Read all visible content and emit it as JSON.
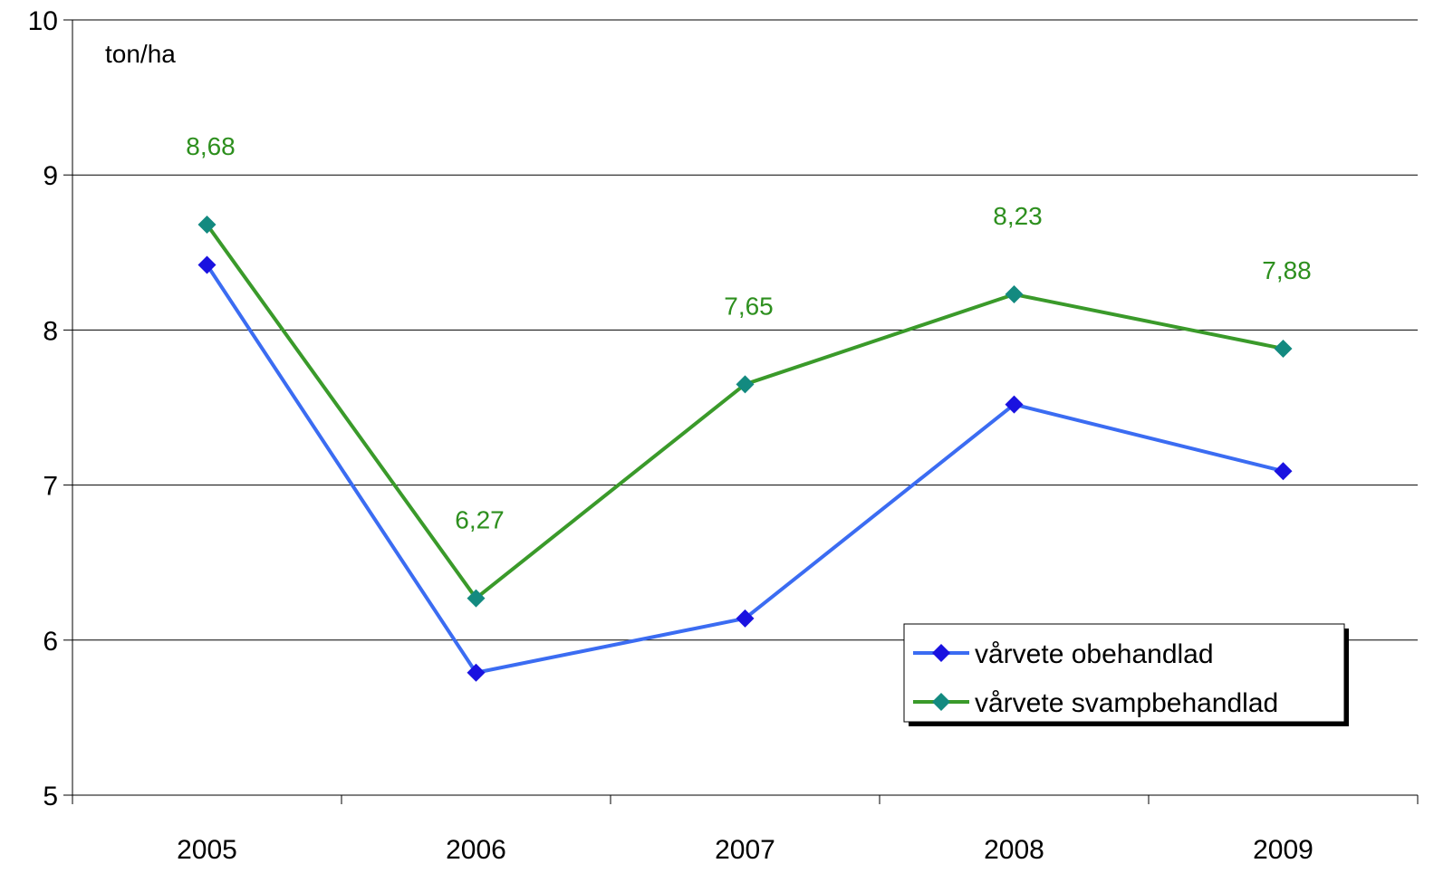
{
  "chart_data": {
    "type": "line",
    "title": "",
    "unit_label": "ton/ha",
    "xlabel": "",
    "ylabel": "",
    "categories": [
      "2005",
      "2006",
      "2007",
      "2008",
      "2009"
    ],
    "ylim": [
      5,
      10
    ],
    "yticks": [
      "5",
      "6",
      "7",
      "8",
      "9",
      "10"
    ],
    "grid": true,
    "legend_position": "bottom-right",
    "series": [
      {
        "name": "vårvete obehandlad",
        "values": [
          8.42,
          5.79,
          6.14,
          7.52,
          7.09
        ],
        "line_color": "#3b6cf2",
        "marker_color": "#1a12e0",
        "marker": "diamond"
      },
      {
        "name": "vårvete svampbehandlad",
        "values": [
          8.68,
          6.27,
          7.65,
          8.23,
          7.88
        ],
        "line_color": "#3a9a2a",
        "marker_color": "#138a80",
        "marker": "diamond",
        "data_labels": [
          "8,68",
          "6,27",
          "7,65",
          "8,23",
          "7,88"
        ],
        "data_label_color": "#2d8f1e"
      }
    ]
  }
}
